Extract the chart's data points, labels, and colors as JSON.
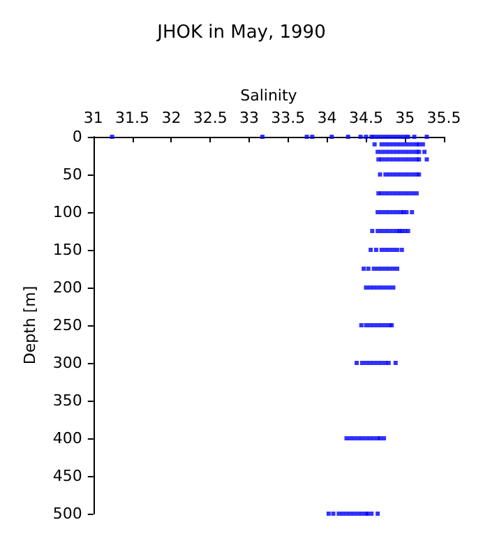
{
  "chart_data": {
    "type": "scatter",
    "title": "JHOK in May, 1990",
    "xlabel": "Salinity",
    "ylabel": "Depth [m]",
    "xlim": [
      31,
      35.5
    ],
    "xticks": [
      31,
      31.5,
      32,
      32.5,
      33,
      33.5,
      34,
      34.5,
      35,
      35.5
    ],
    "ylim": [
      500,
      0
    ],
    "yticks": [
      0,
      50,
      100,
      150,
      200,
      250,
      300,
      350,
      400,
      450,
      500
    ],
    "marker": "square",
    "series": [
      {
        "color": "#0000ff",
        "x": [
          31.24,
          33.17,
          33.74,
          33.81,
          34.06,
          34.27,
          34.43,
          34.5,
          34.57,
          34.6,
          34.65,
          34.7,
          34.75,
          34.8,
          34.85,
          34.9,
          34.95,
          35.0,
          35.04,
          35.12,
          35.28,
          34.61,
          34.7,
          34.75,
          34.8,
          34.85,
          34.9,
          34.95,
          35.0,
          35.05,
          35.1,
          35.15,
          35.18,
          35.23,
          34.65,
          34.7,
          34.75,
          34.8,
          34.85,
          34.9,
          34.95,
          35.0,
          35.05,
          35.1,
          35.15,
          35.18,
          35.25,
          34.66,
          34.7,
          34.75,
          34.8,
          34.85,
          34.9,
          34.95,
          35.0,
          35.05,
          35.1,
          35.15,
          35.18,
          35.28,
          34.68,
          34.75,
          34.8,
          34.85,
          34.9,
          34.95,
          35.0,
          35.05,
          35.1,
          35.15,
          35.18,
          34.66,
          34.7,
          34.75,
          34.8,
          34.85,
          34.9,
          34.95,
          35.0,
          35.05,
          35.1,
          35.15,
          34.65,
          34.7,
          34.75,
          34.8,
          34.85,
          34.9,
          34.95,
          34.98,
          35.02,
          35.09,
          34.58,
          34.65,
          34.7,
          34.75,
          34.8,
          34.85,
          34.9,
          34.93,
          34.96,
          35.0,
          35.04,
          34.56,
          34.63,
          34.7,
          34.75,
          34.8,
          34.85,
          34.9,
          34.96,
          34.47,
          34.53,
          34.6,
          34.65,
          34.7,
          34.75,
          34.8,
          34.85,
          34.9,
          34.5,
          34.55,
          34.6,
          34.65,
          34.7,
          34.75,
          34.8,
          34.85,
          34.44,
          34.5,
          34.55,
          34.6,
          34.65,
          34.7,
          34.75,
          34.8,
          34.83,
          34.38,
          34.45,
          34.5,
          34.55,
          34.6,
          34.65,
          34.7,
          34.75,
          34.79,
          34.88,
          34.25,
          34.3,
          34.35,
          34.4,
          34.45,
          34.5,
          34.55,
          34.6,
          34.65,
          34.68,
          34.73,
          34.02,
          34.08,
          34.15,
          34.2,
          34.25,
          34.3,
          34.35,
          34.4,
          34.45,
          34.5,
          34.52,
          34.57,
          34.65
        ],
        "values": [
          0,
          0,
          0,
          0,
          0,
          0,
          0,
          0,
          0,
          0,
          0,
          0,
          0,
          0,
          0,
          0,
          0,
          0,
          0,
          0,
          0,
          10,
          10,
          10,
          10,
          10,
          10,
          10,
          10,
          10,
          10,
          10,
          10,
          10,
          20,
          20,
          20,
          20,
          20,
          20,
          20,
          20,
          20,
          20,
          20,
          20,
          20,
          30,
          30,
          30,
          30,
          30,
          30,
          30,
          30,
          30,
          30,
          30,
          30,
          30,
          50,
          50,
          50,
          50,
          50,
          50,
          50,
          50,
          50,
          50,
          50,
          75,
          75,
          75,
          75,
          75,
          75,
          75,
          75,
          75,
          75,
          75,
          100,
          100,
          100,
          100,
          100,
          100,
          100,
          100,
          100,
          100,
          125,
          125,
          125,
          125,
          125,
          125,
          125,
          125,
          125,
          125,
          125,
          150,
          150,
          150,
          150,
          150,
          150,
          150,
          150,
          175,
          175,
          175,
          175,
          175,
          175,
          175,
          175,
          175,
          200,
          200,
          200,
          200,
          200,
          200,
          200,
          200,
          250,
          250,
          250,
          250,
          250,
          250,
          250,
          250,
          250,
          300,
          300,
          300,
          300,
          300,
          300,
          300,
          300,
          300,
          300,
          400,
          400,
          400,
          400,
          400,
          400,
          400,
          400,
          400,
          400,
          400,
          500,
          500,
          500,
          500,
          500,
          500,
          500,
          500,
          500,
          500,
          500,
          500,
          500
        ]
      }
    ]
  }
}
